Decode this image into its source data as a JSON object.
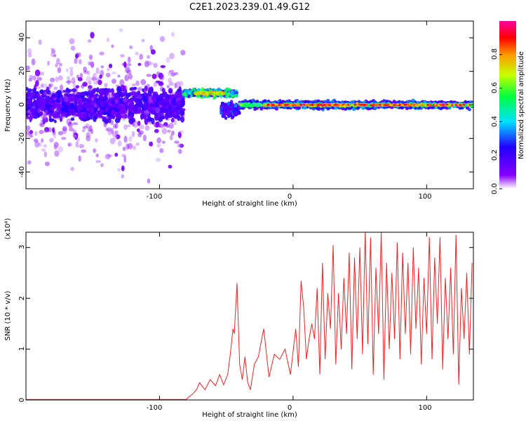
{
  "figure": {
    "title": "C2E1.2023.239.01.49.G12"
  },
  "chart_data": [
    {
      "type": "heatmap",
      "xlabel": "Height of straight line (km)",
      "ylabel": "Frequency (Hz)",
      "xlim": [
        -200,
        135
      ],
      "ylim": [
        -50,
        50
      ],
      "xticks": [
        -100,
        0,
        100
      ],
      "xtick_labels": [
        "-100",
        "0",
        "100"
      ],
      "yticks": [
        -40,
        -20,
        0,
        20,
        40
      ],
      "ytick_labels": [
        "-40",
        "-20",
        "0",
        "20",
        "40"
      ],
      "grid": false,
      "colorbar": {
        "label": "Normalized spectral amplitude",
        "range": [
          0,
          1
        ],
        "ticks": [
          0.0,
          0.2,
          0.4,
          0.6,
          0.8
        ],
        "tick_labels": [
          "0.0",
          "0.2",
          "0.4",
          "0.6",
          "0.8"
        ],
        "colormap": [
          "#ffffff",
          "#8800ff",
          "#2200ff",
          "#00e0ff",
          "#00ff40",
          "#c8ff00",
          "#ff9900",
          "#ff0000",
          "#ff00a0"
        ]
      },
      "features": [
        {
          "region": "noise",
          "x_range": [
            -200,
            -82
          ],
          "center_hz": 0,
          "spread_hz": 50,
          "peak_amplitude": 0.25
        },
        {
          "region": "offset-band",
          "x_range": [
            -82,
            -42
          ],
          "center_hz": 8,
          "spread_hz": 3,
          "peak_amplitude": 0.75
        },
        {
          "region": "transition",
          "x_range": [
            -54,
            -40
          ],
          "center_hz": -3,
          "spread_hz": 6,
          "peak_amplitude": 0.3
        },
        {
          "region": "main-band",
          "x_range": [
            -40,
            135
          ],
          "center_hz": 0,
          "spread_hz": 3,
          "peak_amplitude": 1.0
        }
      ]
    },
    {
      "type": "line",
      "xlabel": "Height of straight line (km)",
      "ylabel": "SNR (10 * v/v)",
      "y_multiplier": "(x10⁴)",
      "xlim": [
        -200,
        135
      ],
      "ylim": [
        0,
        3.3
      ],
      "xticks": [
        -100,
        0,
        100
      ],
      "xtick_labels": [
        "-100",
        "0",
        "100"
      ],
      "yticks": [
        0,
        1,
        2,
        3
      ],
      "ytick_labels": [
        "0",
        "1",
        "2",
        "3"
      ],
      "grid": false,
      "series": [
        {
          "color": "#ee2222",
          "x": [
            -200,
            -80,
            -78,
            -75,
            -72,
            -70,
            -66,
            -62,
            -58,
            -55,
            -52,
            -49,
            -47,
            -45,
            -44,
            -42,
            -40,
            -38,
            -36,
            -34,
            -32,
            -29,
            -26,
            -22,
            -18,
            -14,
            -10,
            -6,
            -2,
            2,
            4,
            6,
            8,
            10,
            12,
            14,
            16,
            18,
            20,
            22,
            24,
            26,
            28,
            30,
            32,
            34,
            36,
            38,
            40,
            42,
            44,
            46,
            48,
            50,
            52,
            54,
            56,
            58,
            60,
            62,
            64,
            66,
            68,
            70,
            72,
            74,
            76,
            78,
            80,
            82,
            84,
            86,
            88,
            90,
            92,
            94,
            96,
            98,
            100,
            102,
            104,
            106,
            108,
            110,
            112,
            114,
            116,
            118,
            120,
            122,
            124,
            126,
            128,
            130,
            132,
            134
          ],
          "y": [
            0.01,
            0.01,
            0.06,
            0.12,
            0.22,
            0.34,
            0.2,
            0.4,
            0.28,
            0.5,
            0.3,
            0.5,
            0.9,
            1.4,
            1.3,
            2.3,
            0.7,
            0.4,
            0.85,
            0.35,
            0.2,
            0.7,
            0.85,
            1.4,
            0.45,
            0.9,
            0.8,
            1.0,
            0.5,
            1.4,
            0.65,
            2.35,
            1.8,
            0.8,
            1.2,
            1.5,
            1.2,
            2.2,
            0.5,
            2.7,
            0.8,
            2.1,
            1.4,
            3.05,
            0.7,
            2.1,
            1.0,
            2.4,
            1.3,
            2.9,
            0.6,
            2.8,
            1.2,
            3.0,
            0.9,
            3.3,
            1.1,
            3.2,
            0.5,
            2.6,
            1.3,
            3.3,
            0.4,
            2.7,
            1.0,
            2.5,
            1.2,
            3.1,
            0.8,
            2.9,
            1.3,
            2.7,
            0.9,
            3.0,
            1.4,
            2.6,
            0.7,
            2.4,
            1.3,
            3.2,
            0.8,
            2.8,
            1.5,
            3.2,
            0.6,
            2.4,
            1.2,
            2.6,
            0.9,
            3.25,
            0.3,
            2.2,
            1.2,
            2.5,
            0.9,
            2.7
          ]
        }
      ]
    }
  ]
}
